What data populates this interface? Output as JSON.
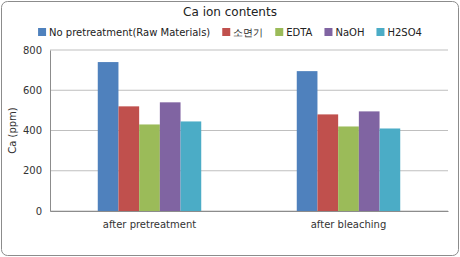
{
  "chart_data": {
    "type": "bar",
    "title": "Ca ion contents",
    "ylabel": "Ca (ppm)",
    "categories": [
      "after pretreatment",
      "after bleaching"
    ],
    "series": [
      {
        "name": "No pretreatment(Raw Materials)",
        "color": "#4f81bd",
        "values": [
          740,
          695
        ]
      },
      {
        "name": "소면기",
        "color": "#c0504d",
        "values": [
          520,
          480
        ]
      },
      {
        "name": "EDTA",
        "color": "#9bbb59",
        "values": [
          430,
          420
        ]
      },
      {
        "name": "NaOH",
        "color": "#8064a2",
        "values": [
          540,
          495
        ]
      },
      {
        "name": "H2SO4",
        "color": "#4bacc6",
        "values": [
          445,
          410
        ]
      }
    ],
    "ylim": [
      0,
      800
    ],
    "yticks": [
      0,
      200,
      400,
      600,
      800
    ],
    "grid": true,
    "legend": "top"
  }
}
